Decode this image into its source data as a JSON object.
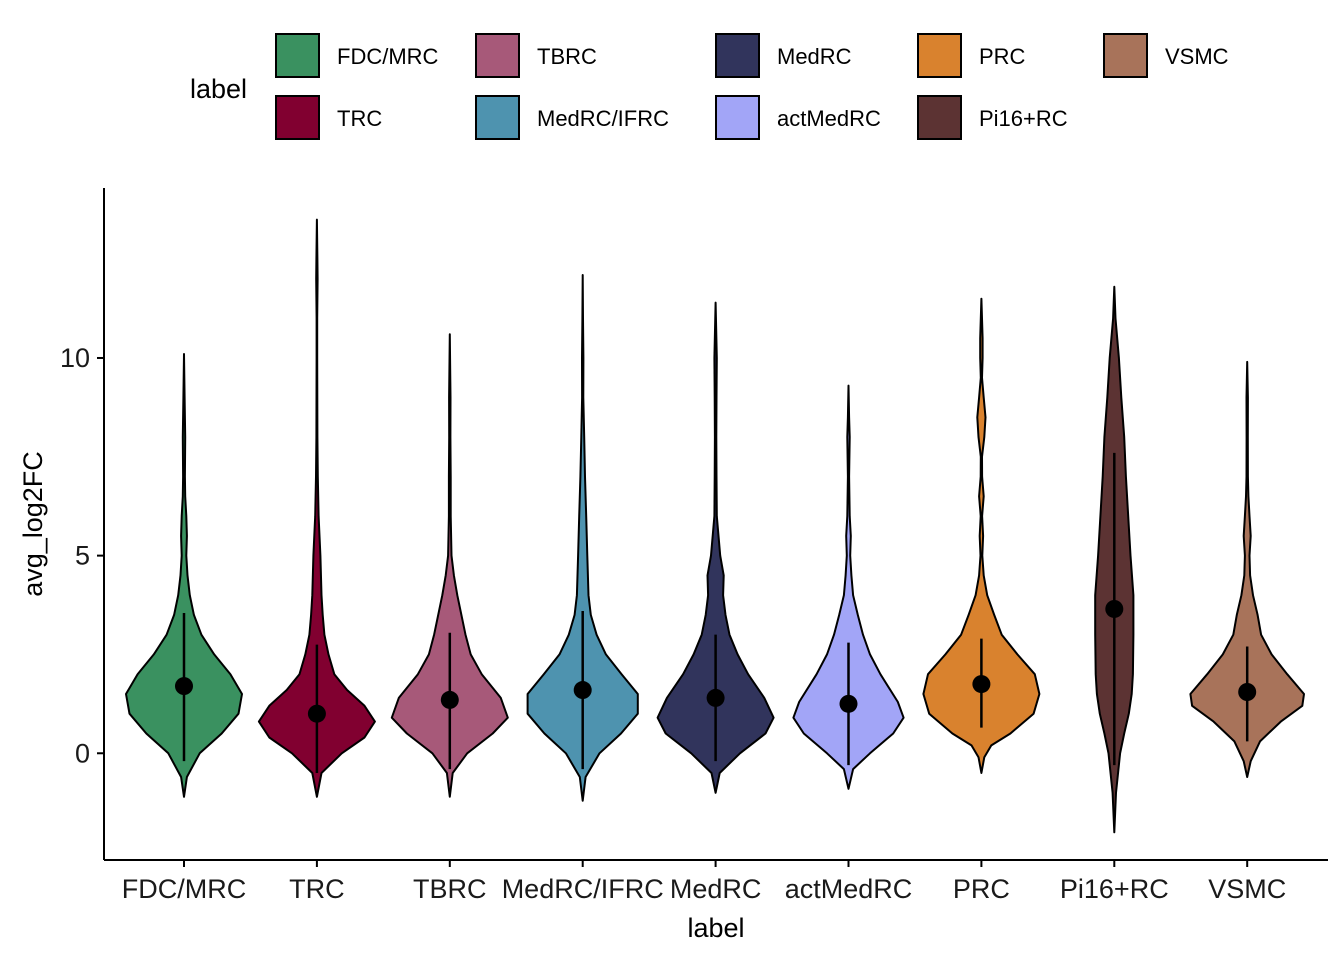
{
  "chart_data": {
    "type": "violin",
    "xlabel": "label",
    "ylabel": "avg_log2FC",
    "ylim": [
      -2.7,
      14.3
    ],
    "yticks": [
      0,
      5,
      10
    ],
    "legend": {
      "title": "label",
      "position": "top"
    },
    "categories": [
      "FDC/MRC",
      "TRC",
      "TBRC",
      "MedRC/IFRC",
      "MedRC",
      "actMedRC",
      "PRC",
      "Pi16+RC",
      "VSMC"
    ],
    "colors": [
      "#3A9160",
      "#810030",
      "#A75979",
      "#4E93AF",
      "#31345C",
      "#A2A5F7",
      "#D9822E",
      "#5C3333",
      "#A8735A"
    ],
    "series": [
      {
        "name": "FDC/MRC",
        "min": -1.1,
        "max": 10.1,
        "mean": 1.7,
        "sd_low": -0.2,
        "sd_high": 3.55,
        "density": [
          [
            -1.1,
            0.0
          ],
          [
            -0.6,
            0.05
          ],
          [
            0,
            0.27
          ],
          [
            0.5,
            0.65
          ],
          [
            1.0,
            0.94
          ],
          [
            1.5,
            1.0
          ],
          [
            2.0,
            0.8
          ],
          [
            2.5,
            0.52
          ],
          [
            3.0,
            0.3
          ],
          [
            3.5,
            0.17
          ],
          [
            4.0,
            0.1
          ],
          [
            4.5,
            0.06
          ],
          [
            5.0,
            0.04
          ],
          [
            5.5,
            0.05
          ],
          [
            6.0,
            0.04
          ],
          [
            6.5,
            0.02
          ],
          [
            7.0,
            0.015
          ],
          [
            8.0,
            0.02
          ],
          [
            9.0,
            0.01
          ],
          [
            10.1,
            0.0
          ]
        ]
      },
      {
        "name": "TRC",
        "min": -1.1,
        "max": 13.5,
        "mean": 1.0,
        "sd_low": -0.5,
        "sd_high": 2.75,
        "density": [
          [
            -1.1,
            0.0
          ],
          [
            -0.5,
            0.08
          ],
          [
            0,
            0.43
          ],
          [
            0.4,
            0.82
          ],
          [
            0.8,
            1.0
          ],
          [
            1.2,
            0.82
          ],
          [
            1.6,
            0.52
          ],
          [
            2.0,
            0.3
          ],
          [
            2.5,
            0.2
          ],
          [
            3.0,
            0.13
          ],
          [
            3.5,
            0.1
          ],
          [
            4.0,
            0.08
          ],
          [
            5.0,
            0.06
          ],
          [
            6.0,
            0.03
          ],
          [
            7.0,
            0.015
          ],
          [
            8.0,
            0.008
          ],
          [
            10.0,
            0.006
          ],
          [
            11.0,
            0.006
          ],
          [
            12.0,
            0.012
          ],
          [
            12.5,
            0.008
          ],
          [
            13.5,
            0.0
          ]
        ]
      },
      {
        "name": "TBRC",
        "min": -1.1,
        "max": 10.6,
        "mean": 1.35,
        "sd_low": -0.4,
        "sd_high": 3.05,
        "density": [
          [
            -1.1,
            0.0
          ],
          [
            -0.5,
            0.05
          ],
          [
            0,
            0.3
          ],
          [
            0.5,
            0.74
          ],
          [
            0.9,
            1.0
          ],
          [
            1.4,
            0.88
          ],
          [
            2.0,
            0.55
          ],
          [
            2.5,
            0.36
          ],
          [
            3.0,
            0.27
          ],
          [
            3.5,
            0.2
          ],
          [
            4.0,
            0.13
          ],
          [
            4.5,
            0.07
          ],
          [
            5.0,
            0.03
          ],
          [
            6.0,
            0.015
          ],
          [
            7.0,
            0.015
          ],
          [
            8.0,
            0.01
          ],
          [
            9.0,
            0.012
          ],
          [
            10.6,
            0.0
          ]
        ]
      },
      {
        "name": "MedRC/IFRC",
        "min": -1.2,
        "max": 12.1,
        "mean": 1.6,
        "sd_low": -0.4,
        "sd_high": 3.6,
        "density": [
          [
            -1.2,
            0.0
          ],
          [
            -0.6,
            0.05
          ],
          [
            0,
            0.29
          ],
          [
            0.5,
            0.66
          ],
          [
            1.0,
            0.95
          ],
          [
            1.5,
            0.95
          ],
          [
            2.0,
            0.67
          ],
          [
            2.5,
            0.4
          ],
          [
            3.0,
            0.24
          ],
          [
            3.5,
            0.14
          ],
          [
            4.0,
            0.1
          ],
          [
            5.0,
            0.08
          ],
          [
            6.0,
            0.06
          ],
          [
            7.0,
            0.04
          ],
          [
            8.0,
            0.025
          ],
          [
            9.0,
            0.01
          ],
          [
            10.0,
            0.012
          ],
          [
            11.0,
            0.006
          ],
          [
            12.1,
            0.0
          ]
        ]
      },
      {
        "name": "MedRC",
        "min": -1.0,
        "max": 11.4,
        "mean": 1.4,
        "sd_low": -0.2,
        "sd_high": 3.0,
        "density": [
          [
            -1.0,
            0.0
          ],
          [
            -0.5,
            0.07
          ],
          [
            0,
            0.42
          ],
          [
            0.5,
            0.86
          ],
          [
            0.9,
            1.0
          ],
          [
            1.4,
            0.84
          ],
          [
            2.0,
            0.56
          ],
          [
            2.5,
            0.38
          ],
          [
            3.0,
            0.24
          ],
          [
            3.5,
            0.17
          ],
          [
            4.0,
            0.13
          ],
          [
            4.5,
            0.14
          ],
          [
            5.0,
            0.08
          ],
          [
            6.0,
            0.02
          ],
          [
            7.0,
            0.015
          ],
          [
            8.0,
            0.012
          ],
          [
            9.0,
            0.015
          ],
          [
            10.0,
            0.02
          ],
          [
            11.4,
            0.0
          ]
        ]
      },
      {
        "name": "actMedRC",
        "min": -0.9,
        "max": 9.3,
        "mean": 1.25,
        "sd_low": -0.3,
        "sd_high": 2.8,
        "density": [
          [
            -0.9,
            0.0
          ],
          [
            -0.4,
            0.08
          ],
          [
            0,
            0.37
          ],
          [
            0.5,
            0.77
          ],
          [
            0.9,
            0.95
          ],
          [
            1.3,
            0.85
          ],
          [
            2.0,
            0.55
          ],
          [
            2.5,
            0.37
          ],
          [
            3.0,
            0.25
          ],
          [
            3.5,
            0.16
          ],
          [
            4.0,
            0.08
          ],
          [
            4.5,
            0.05
          ],
          [
            5.0,
            0.03
          ],
          [
            5.5,
            0.04
          ],
          [
            6.0,
            0.02
          ],
          [
            7.0,
            0.01
          ],
          [
            8.0,
            0.02
          ],
          [
            8.5,
            0.01
          ],
          [
            9.3,
            0.0
          ]
        ]
      },
      {
        "name": "PRC",
        "min": -0.5,
        "max": 11.5,
        "mean": 1.75,
        "sd_low": 0.65,
        "sd_high": 2.9,
        "density": [
          [
            -0.5,
            0.0
          ],
          [
            -0.1,
            0.05
          ],
          [
            0.2,
            0.17
          ],
          [
            0.5,
            0.5
          ],
          [
            1.0,
            0.9
          ],
          [
            1.5,
            1.0
          ],
          [
            2.0,
            0.92
          ],
          [
            2.5,
            0.62
          ],
          [
            3.0,
            0.35
          ],
          [
            3.5,
            0.22
          ],
          [
            4.0,
            0.1
          ],
          [
            4.5,
            0.04
          ],
          [
            5.0,
            0.015
          ],
          [
            5.5,
            0.03
          ],
          [
            6.0,
            0.012
          ],
          [
            6.5,
            0.04
          ],
          [
            7.0,
            0.012
          ],
          [
            7.5,
            0.01
          ],
          [
            8.0,
            0.05
          ],
          [
            8.5,
            0.07
          ],
          [
            9.0,
            0.04
          ],
          [
            9.5,
            0.01
          ],
          [
            10.0,
            0.02
          ],
          [
            10.5,
            0.02
          ],
          [
            11.5,
            0.0
          ]
        ]
      },
      {
        "name": "Pi16+RC",
        "min": -2.0,
        "max": 11.8,
        "mean": 3.65,
        "sd_low": -0.3,
        "sd_high": 7.6,
        "density": [
          [
            -2.0,
            0.0
          ],
          [
            -1.0,
            0.03
          ],
          [
            0,
            0.1
          ],
          [
            0.5,
            0.17
          ],
          [
            1.0,
            0.25
          ],
          [
            1.5,
            0.3
          ],
          [
            2.0,
            0.32
          ],
          [
            3.0,
            0.33
          ],
          [
            4.0,
            0.33
          ],
          [
            5.0,
            0.28
          ],
          [
            6.0,
            0.24
          ],
          [
            7.0,
            0.2
          ],
          [
            8.0,
            0.17
          ],
          [
            9.0,
            0.12
          ],
          [
            10.0,
            0.08
          ],
          [
            11.0,
            0.02
          ],
          [
            11.8,
            0.0
          ]
        ]
      },
      {
        "name": "VSMC",
        "min": -0.6,
        "max": 9.9,
        "mean": 1.55,
        "sd_low": 0.3,
        "sd_high": 2.7,
        "density": [
          [
            -0.6,
            0.0
          ],
          [
            -0.2,
            0.06
          ],
          [
            0.3,
            0.22
          ],
          [
            0.8,
            0.58
          ],
          [
            1.2,
            0.95
          ],
          [
            1.5,
            0.98
          ],
          [
            2.0,
            0.69
          ],
          [
            2.5,
            0.42
          ],
          [
            3.0,
            0.24
          ],
          [
            3.5,
            0.18
          ],
          [
            4.0,
            0.1
          ],
          [
            4.5,
            0.05
          ],
          [
            5.0,
            0.04
          ],
          [
            5.5,
            0.06
          ],
          [
            6.0,
            0.04
          ],
          [
            6.5,
            0.02
          ],
          [
            7.0,
            0.012
          ],
          [
            8.0,
            0.01
          ],
          [
            9.0,
            0.012
          ],
          [
            9.9,
            0.0
          ]
        ]
      }
    ]
  }
}
